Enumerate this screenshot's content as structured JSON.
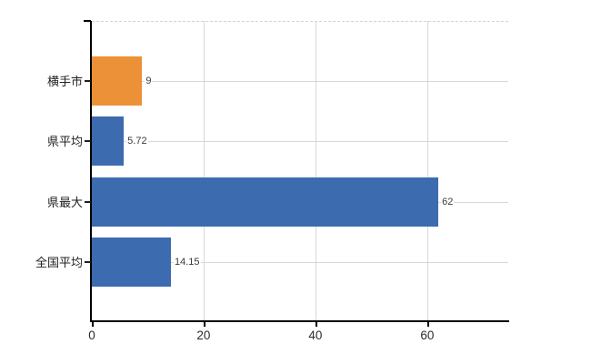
{
  "chart_data": {
    "type": "bar",
    "orientation": "horizontal",
    "title": "",
    "xlabel": "",
    "ylabel": "",
    "categories": [
      "横手市",
      "県平均",
      "県最大",
      "全国平均"
    ],
    "values": [
      9,
      5.72,
      62,
      14.15
    ],
    "value_labels": [
      "9",
      "5.72",
      "62",
      "14.15"
    ],
    "bar_colors": [
      "#ec9138",
      "#3c6bb0",
      "#3c6bb0",
      "#3c6bb0"
    ],
    "xlim": [
      0,
      74.5
    ],
    "xticks": [
      0,
      20,
      40,
      60
    ],
    "xtick_labels": [
      "0",
      "20",
      "40",
      "60"
    ],
    "grid": true,
    "legend": false,
    "accent_orange": "#ec9138",
    "accent_blue": "#3c6bb0",
    "gridline_color": "#d6dad3",
    "axis_color": "#000000"
  }
}
